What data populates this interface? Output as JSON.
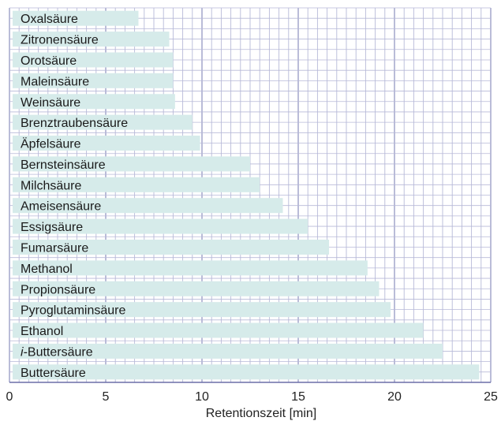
{
  "chart_data": {
    "type": "bar",
    "orientation": "horizontal",
    "categories": [
      "Oxalsäure",
      "Zitronensäure",
      "Orotsäure",
      "Maleinsäure",
      "Weinsäure",
      "Brenztraubensäure",
      "Äpfelsäure",
      "Bernsteinsäure",
      "Milchsäure",
      "Ameisensäure",
      "Essigsäure",
      "Fumarsäure",
      "Methanol",
      "Propionsäure",
      "Pyroglutaminsäure",
      "Ethanol",
      "i-Buttersäure",
      "Buttersäure"
    ],
    "values": [
      6.7,
      8.3,
      8.5,
      8.5,
      8.6,
      9.5,
      9.9,
      12.5,
      13.0,
      14.2,
      15.5,
      16.6,
      18.6,
      19.2,
      19.8,
      21.5,
      22.5,
      24.4
    ],
    "title": "",
    "xlabel": "Retentionszeit [min]",
    "ylabel": "",
    "xlim": [
      0,
      25
    ],
    "xticks": [
      "0",
      "5",
      "10",
      "15",
      "20",
      "25"
    ],
    "grid": true,
    "colors": {
      "bar": "#d6ebea",
      "grid_major": "#8c8fbf",
      "grid_minor": "#b7b9d8",
      "axis": "#6b6fa8"
    }
  }
}
